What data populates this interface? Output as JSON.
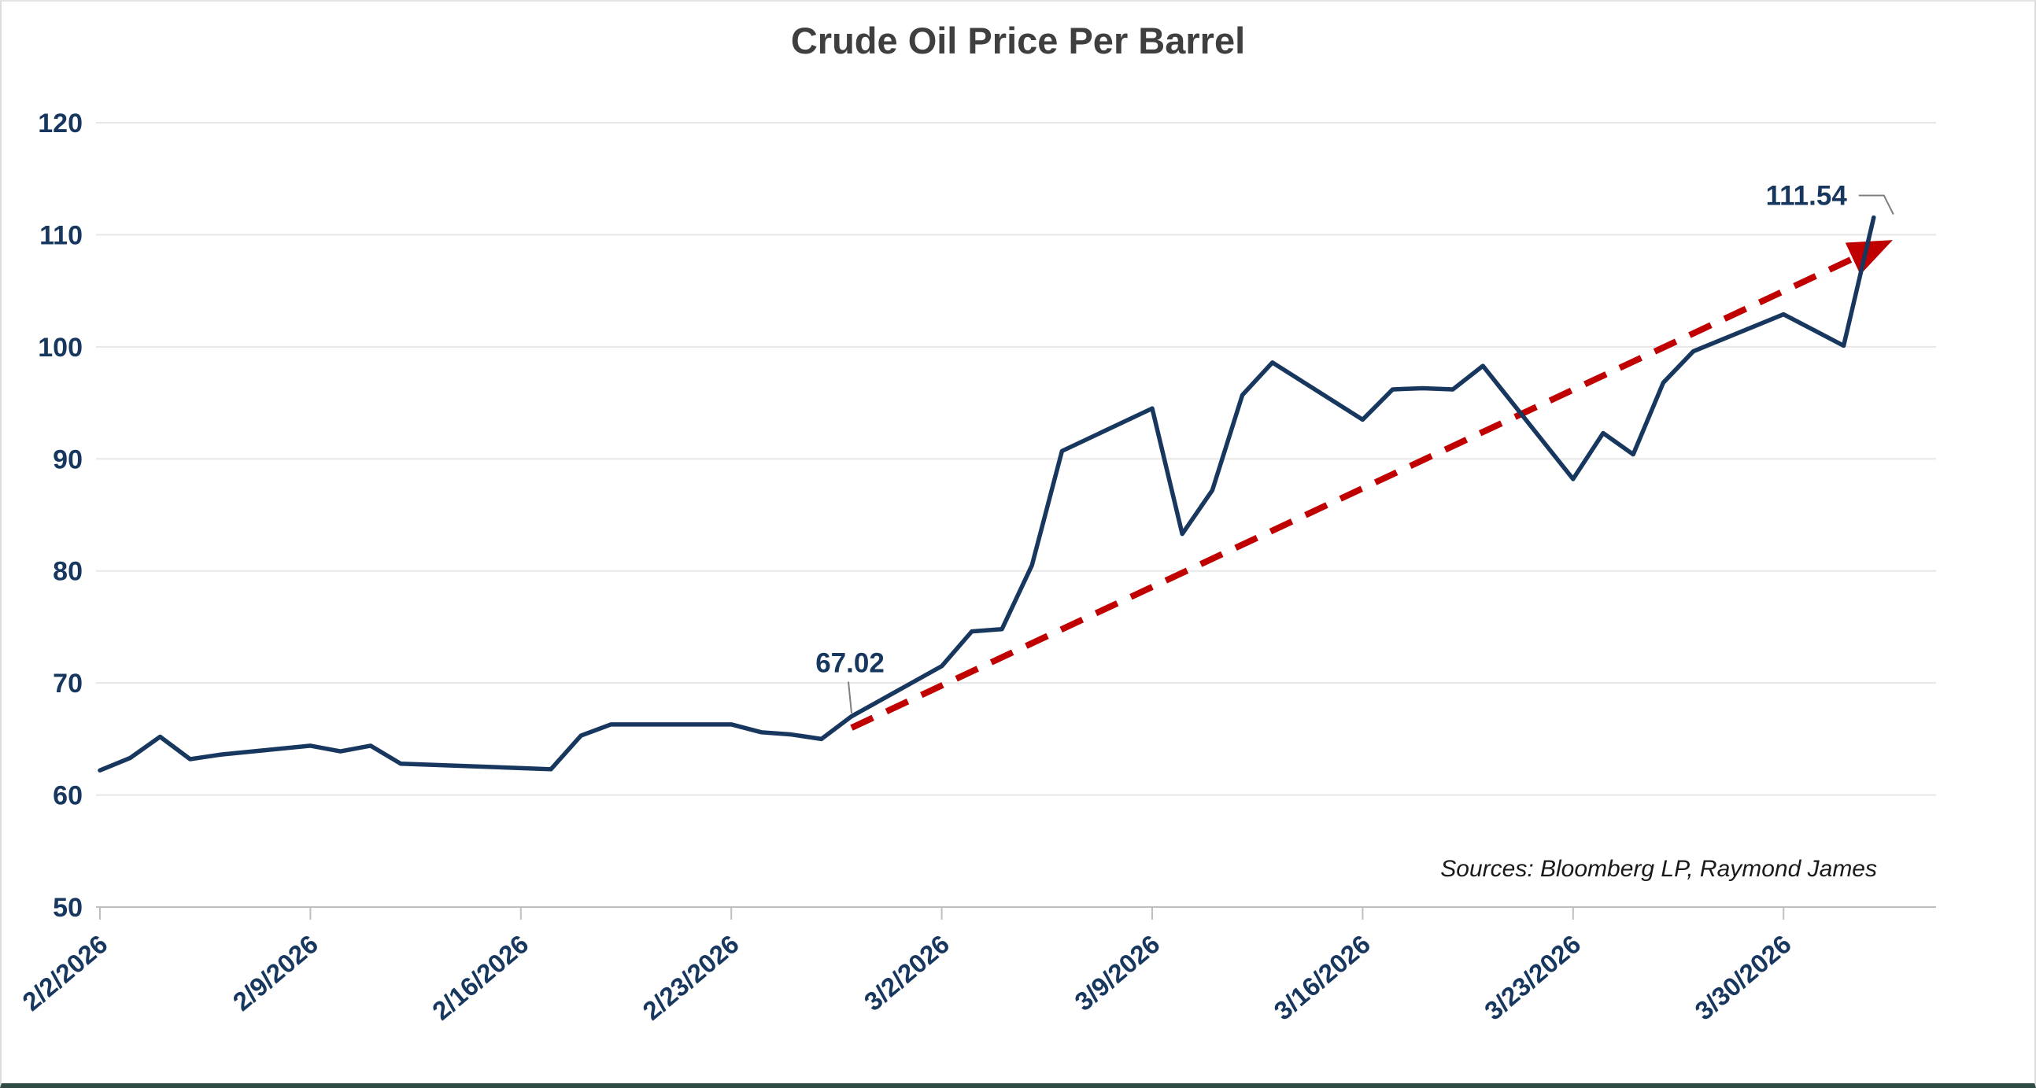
{
  "chart_data": {
    "type": "line",
    "title": "Crude Oil Price Per Barrel",
    "xlabel": "",
    "ylabel": "",
    "ylim": [
      50,
      120
    ],
    "y_tick_step": 10,
    "y_tick_labels": [
      "120",
      "110",
      "100",
      "90",
      "80",
      "70",
      "60",
      "50"
    ],
    "grid": "horizontal",
    "legend": "none",
    "x_tick_labels": [
      "2/2/2026",
      "2/9/2026",
      "2/16/2026",
      "2/23/2026",
      "3/2/2026",
      "3/9/2026",
      "3/16/2026",
      "3/23/2026",
      "3/30/2026"
    ],
    "x": [
      "2/2/2026",
      "2/3/2026",
      "2/4/2026",
      "2/5/2026",
      "2/6/2026",
      "2/9/2026",
      "2/10/2026",
      "2/11/2026",
      "2/12/2026",
      "2/13/2026",
      "2/16/2026",
      "2/17/2026",
      "2/18/2026",
      "2/19/2026",
      "2/20/2026",
      "2/23/2026",
      "2/24/2026",
      "2/25/2026",
      "2/26/2026",
      "2/27/2026",
      "3/2/2026",
      "3/3/2026",
      "3/4/2026",
      "3/5/2026",
      "3/6/2026",
      "3/9/2026",
      "3/10/2026",
      "3/11/2026",
      "3/12/2026",
      "3/13/2026",
      "3/16/2026",
      "3/17/2026",
      "3/18/2026",
      "3/19/2026",
      "3/20/2026",
      "3/23/2026",
      "3/24/2026",
      "3/25/2026",
      "3/26/2026",
      "3/27/2026",
      "3/30/2026",
      "3/31/2026",
      "4/1/2026",
      "4/2/2026"
    ],
    "values": [
      62.2,
      63.3,
      65.2,
      63.2,
      63.6,
      64.4,
      63.9,
      64.4,
      62.8,
      62.7,
      62.4,
      62.3,
      65.3,
      66.3,
      66.3,
      66.3,
      65.6,
      65.4,
      65.0,
      67.02,
      71.5,
      74.6,
      74.8,
      80.5,
      90.7,
      94.5,
      83.3,
      87.2,
      95.7,
      98.6,
      93.5,
      96.2,
      96.3,
      96.2,
      98.3,
      88.2,
      92.3,
      90.4,
      96.8,
      99.6,
      102.9,
      101.5,
      100.1,
      111.54
    ],
    "annotations": [
      {
        "label": "67.02",
        "date": "2/27/2026",
        "value": 67.02
      },
      {
        "label": "111.54",
        "date": "4/2/2026",
        "value": 111.54
      }
    ],
    "trend_arrow": {
      "style": "dashed",
      "from_date": "2/27/2026",
      "from_value": 66.0,
      "to_date": "4/2/2026",
      "to_value": 109.2
    },
    "sources_note": "Sources: Bloomberg LP, Raymond James",
    "colors": {
      "series": "#17375E",
      "axis_labels": "#17375E",
      "trend": "#C00000",
      "title": "#3F3F3F",
      "gridline": "#E7E7E7",
      "axis_line": "#BFBFBF",
      "callout": "#7F7F7F",
      "bottom_edge": "#2E4B44"
    }
  }
}
